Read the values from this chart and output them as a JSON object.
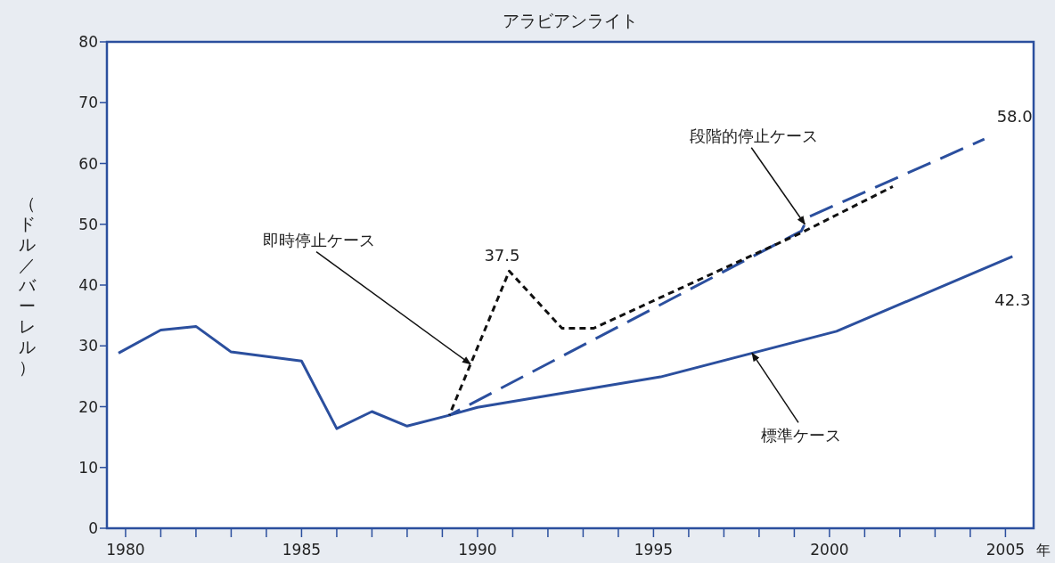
{
  "chart_data": {
    "type": "line",
    "title": "アラビアンライト",
    "ylabel": "（ドル／バーレル）",
    "xlabel": "年",
    "xlim": [
      1979.47,
      2005.8
    ],
    "ylim": [
      0,
      80
    ],
    "xticks": [
      1980,
      {
        "value": 1981,
        "label": null
      },
      {
        "value": 1982,
        "label": null
      },
      {
        "value": 1983,
        "label": null
      },
      {
        "value": 1984,
        "label": null
      },
      1985,
      {
        "value": 1986,
        "label": null
      },
      {
        "value": 1987,
        "label": null
      },
      {
        "value": 1988,
        "label": null
      },
      {
        "value": 1989,
        "label": null
      },
      1990,
      {
        "value": 1991,
        "label": null
      },
      {
        "value": 1992,
        "label": null
      },
      {
        "value": 1993,
        "label": null
      },
      {
        "value": 1994,
        "label": null
      },
      1995,
      {
        "value": 1996,
        "label": null
      },
      {
        "value": 1997,
        "label": null
      },
      {
        "value": 1998,
        "label": null
      },
      {
        "value": 1999,
        "label": null
      },
      2000,
      {
        "value": 2001,
        "label": null
      },
      {
        "value": 2002,
        "label": null
      },
      {
        "value": 2003,
        "label": null
      },
      {
        "value": 2004,
        "label": null
      },
      2005
    ],
    "yticks": [
      0,
      10,
      20,
      30,
      40,
      50,
      60,
      70,
      80
    ],
    "grid": false,
    "marker": "none",
    "series": [
      {
        "color": "#2b4f9e",
        "line_style": "solid",
        "x": [
          1979.8,
          1981,
          1982,
          1983,
          1985,
          1986,
          1987,
          1988,
          1989.2,
          1990,
          1995.2,
          2000.2,
          2005.2
        ],
        "values": [
          28.8,
          32.6,
          33.2,
          29,
          27.5,
          16.4,
          19.2,
          16.8,
          18.6,
          19.9,
          24.9,
          32.4,
          44.7
        ]
      },
      {
        "color": "#2b4f9e",
        "line_style": "dashed",
        "x": [
          1989.2,
          1999.2,
          1999.4,
          2004.4
        ],
        "values": [
          18.6,
          48.9,
          51.2,
          64.0
        ]
      },
      {
        "color": "#111111",
        "line_style": "dashed",
        "x": [
          1989.2,
          1990.9,
          1992.4,
          1993.3,
          1994.8,
          1999.2,
          2001.8
        ],
        "values": [
          18.6,
          42.3,
          32.9,
          32.9,
          36.9,
          48.6,
          56.2
        ]
      }
    ],
    "annotations": [
      {
        "text": "即時停止ケース",
        "x": 1989.8,
        "y": 27.0
      },
      {
        "text": "段階的停止ケース",
        "x": 1999.3,
        "y": 50.0
      },
      {
        "text": "標準ケース",
        "x": 1997.8,
        "y": 28.8
      },
      {
        "text": "37.5",
        "x": 1990.9,
        "y": 42.3
      },
      {
        "text": "58.0",
        "x": 2004.4,
        "y": 64.0
      },
      {
        "text": "42.3",
        "x": 2005.2,
        "y": 44.7
      }
    ]
  }
}
